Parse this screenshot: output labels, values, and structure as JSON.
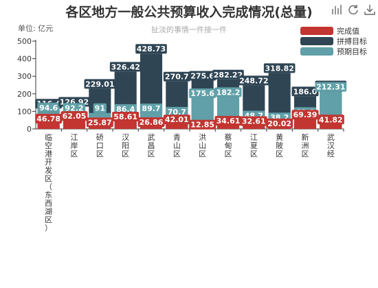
{
  "toolbar": {
    "icons": [
      "bar-chart-icon",
      "refresh-icon",
      "download-icon"
    ]
  },
  "colors": {
    "actual": "#c23531",
    "stretch": "#2f4554",
    "expected": "#61a0a8",
    "label_bg_actual": "#c23531",
    "label_bg_stretch": "#2f4554",
    "label_bg_expected": "#61a0a8"
  },
  "chart_data": {
    "type": "bar",
    "title": "各区地方一般公共预算收入完成情况(总量)",
    "subtitle": "扯淡的事情一件接一件",
    "unit_label": "单位: 亿元",
    "xlabel": "",
    "ylabel": "",
    "ylim": [
      0,
      500
    ],
    "yticks": [
      0,
      100,
      200,
      300,
      400,
      500
    ],
    "grid": false,
    "legend_position": "top-right",
    "categories": [
      "临空港开发区(东西湖区)",
      "江岸区",
      "硚口区",
      "汉阳区",
      "武昌区",
      "青山区",
      "洪山区",
      "蔡甸区",
      "江夏区",
      "黄陂区",
      "新洲区",
      "武汉经"
    ],
    "category_labels": [
      "临空港开发区（东西湖区）",
      "江岸区",
      "硚口区",
      "汉阳区",
      "武昌区",
      "青山区",
      "洪山区",
      "蔡甸区",
      "江夏区",
      "黄陂区",
      "新洲区",
      "武汉经"
    ],
    "series": [
      {
        "name": "拼搏目标",
        "key": "stretch",
        "values": [
          116.4,
          126.92,
          229.01,
          326.42,
          428.73,
          270.7,
          275.6,
          282.22,
          248.72,
          318.82,
          186.0,
          220.32
        ],
        "labels": [
          "116.4",
          "126.92",
          "229.01",
          "326.42",
          "428.73",
          "270.7",
          "275.6",
          "282.22",
          "248.72",
          "318.82",
          "186.0",
          "220.32"
        ]
      },
      {
        "name": "预期目标",
        "key": "expected",
        "values": [
          94.6,
          92.2,
          91.0,
          86.4,
          89.7,
          70.7,
          175.6,
          182.2,
          48.7,
          38.2,
          69.0,
          212.31
        ],
        "labels": [
          "94.6",
          "92.2",
          "91",
          "86.4",
          "89.7",
          "70.7",
          "175.6",
          "182.2",
          "48.7",
          "38.2",
          "69.0",
          "212.31"
        ]
      },
      {
        "name": "完成值",
        "key": "actual",
        "values": [
          46.78,
          62.05,
          25.87,
          58.61,
          26.86,
          42.01,
          12.85,
          34.61,
          32.61,
          20.02,
          69.39,
          41.82
        ],
        "labels": [
          "46.78",
          "62.05",
          "25.87",
          "58.61",
          "26.86",
          "42.01",
          "12.85",
          "34.61",
          "32.61",
          "20.02",
          "69.39",
          "41.82"
        ]
      }
    ],
    "legend": [
      "完成值",
      "拼搏目标",
      "预期目标"
    ]
  }
}
